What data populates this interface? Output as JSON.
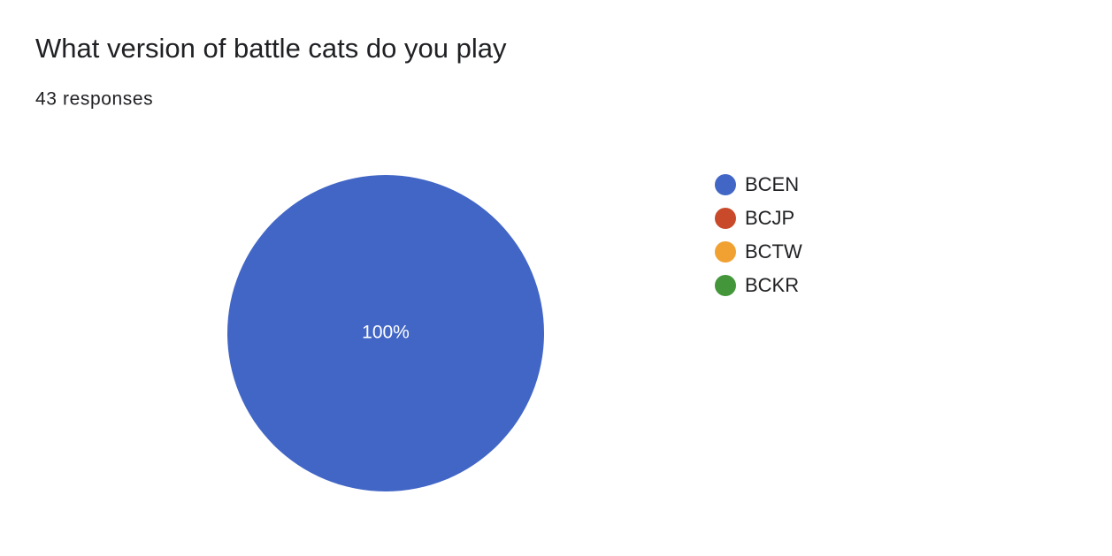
{
  "chart_data": {
    "type": "pie",
    "title": "What version of battle cats do you play",
    "subtitle": "43 responses",
    "categories": [
      "BCEN",
      "BCJP",
      "BCTW",
      "BCKR"
    ],
    "values": [
      100,
      0,
      0,
      0
    ],
    "value_labels": [
      "100%",
      null,
      null,
      null
    ],
    "colors": [
      "#4266c6",
      "#c94a2a",
      "#f0a131",
      "#43963a"
    ],
    "legend": "right"
  }
}
